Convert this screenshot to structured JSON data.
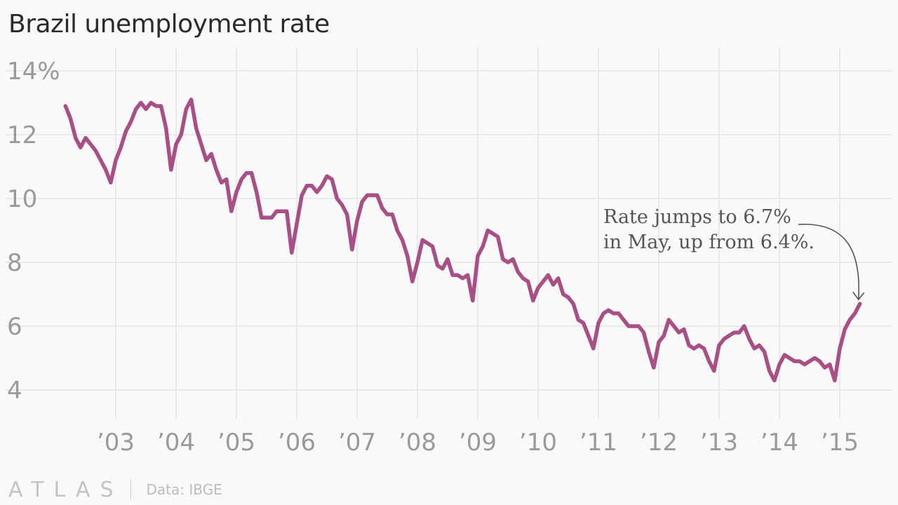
{
  "colors": {
    "line": "#a84f86",
    "grid": "#e6e6e6",
    "background": "#f9f9f9"
  },
  "footer": {
    "brand": "ATLAS",
    "source": "Data: IBGE"
  },
  "chart_data": {
    "type": "line",
    "title": "Brazil unemployment rate",
    "xlabel": "",
    "ylabel": "",
    "ylim": [
      3.5,
      14.8
    ],
    "xlim": [
      2002.0,
      2015.9
    ],
    "grid": true,
    "y_ticks": [
      {
        "value": 4,
        "label": "4"
      },
      {
        "value": 6,
        "label": "6"
      },
      {
        "value": 8,
        "label": "8"
      },
      {
        "value": 10,
        "label": "10"
      },
      {
        "value": 12,
        "label": "12"
      },
      {
        "value": 14,
        "label": "14%"
      }
    ],
    "x_ticks": [
      {
        "value": 2003,
        "label": "’03"
      },
      {
        "value": 2004,
        "label": "’04"
      },
      {
        "value": 2005,
        "label": "’05"
      },
      {
        "value": 2006,
        "label": "’06"
      },
      {
        "value": 2007,
        "label": "’07"
      },
      {
        "value": 2008,
        "label": "’08"
      },
      {
        "value": 2009,
        "label": "’09"
      },
      {
        "value": 2010,
        "label": "’10"
      },
      {
        "value": 2011,
        "label": "’11"
      },
      {
        "value": 2012,
        "label": "’12"
      },
      {
        "value": 2013,
        "label": "’13"
      },
      {
        "value": 2014,
        "label": "’14"
      },
      {
        "value": 2015,
        "label": "’15"
      }
    ],
    "annotation": {
      "lines": [
        "Rate jumps to 6.7%",
        "in May, up from 6.4%."
      ],
      "target": {
        "x": "2015-05",
        "y": 6.7
      }
    },
    "series": [
      {
        "start": "2002-03",
        "values": [
          12.9,
          12.5,
          11.9,
          11.6,
          11.9,
          11.7,
          11.5,
          11.2,
          10.9,
          10.5,
          11.2,
          11.6,
          12.1,
          12.4,
          12.8,
          13.0,
          12.8,
          13.0,
          12.9,
          12.9,
          12.2,
          10.9,
          11.7,
          12.0,
          12.8,
          13.1,
          12.2,
          11.7,
          11.2,
          11.4,
          10.9,
          10.5,
          10.6,
          9.6,
          10.2,
          10.6,
          10.8,
          10.8,
          10.2,
          9.4,
          9.4,
          9.4,
          9.6,
          9.6,
          9.6,
          8.3,
          9.2,
          10.1,
          10.4,
          10.4,
          10.2,
          10.4,
          10.7,
          10.6,
          10.0,
          9.8,
          9.5,
          8.4,
          9.3,
          9.9,
          10.1,
          10.1,
          10.1,
          9.7,
          9.5,
          9.5,
          9.0,
          8.7,
          8.2,
          7.4,
          8.0,
          8.7,
          8.6,
          8.5,
          7.9,
          7.8,
          8.1,
          7.6,
          7.6,
          7.5,
          7.6,
          6.8,
          8.2,
          8.5,
          9.0,
          8.9,
          8.8,
          8.1,
          8.0,
          8.1,
          7.7,
          7.5,
          7.4,
          6.8,
          7.2,
          7.4,
          7.6,
          7.3,
          7.5,
          7.0,
          6.9,
          6.7,
          6.2,
          6.1,
          5.7,
          5.3,
          6.1,
          6.4,
          6.5,
          6.4,
          6.4,
          6.2,
          6.0,
          6.0,
          6.0,
          5.8,
          5.2,
          4.7,
          5.5,
          5.7,
          6.2,
          6.0,
          5.8,
          5.9,
          5.4,
          5.3,
          5.4,
          5.3,
          4.9,
          4.6,
          5.4,
          5.6,
          5.7,
          5.8,
          5.8,
          6.0,
          5.6,
          5.3,
          5.4,
          5.2,
          4.6,
          4.3,
          4.8,
          5.1,
          5.0,
          4.9,
          4.9,
          4.8,
          4.9,
          5.0,
          4.9,
          4.7,
          4.8,
          4.3,
          5.3,
          5.9,
          6.2,
          6.4,
          6.7
        ]
      }
    ]
  }
}
